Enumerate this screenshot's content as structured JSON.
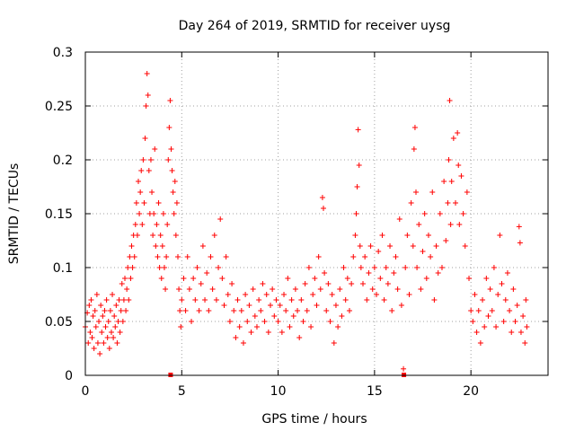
{
  "chart_data": {
    "type": "scatter",
    "title": "Day 264 of 2019, SRMTID for receiver uysg",
    "xlabel": "GPS time / hours",
    "ylabel": "SRMTID / TECUs",
    "xlim": [
      0,
      24
    ],
    "ylim": [
      0,
      0.3
    ],
    "x_ticks": [
      0,
      5,
      10,
      15,
      20
    ],
    "x_tick_labels": [
      "0",
      "5",
      "10",
      "15",
      "20"
    ],
    "y_ticks": [
      0,
      0.05,
      0.1,
      0.15,
      0.2,
      0.25,
      0.3
    ],
    "y_tick_labels": [
      "0",
      "0.05",
      "0.1",
      "0.15",
      "0.2",
      "0.25",
      "0.3"
    ],
    "grid": true,
    "marker": "+",
    "color": "#ff0000",
    "series": [
      {
        "name": "SRMTID",
        "points": [
          [
            0.0,
            0.045
          ],
          [
            0.1,
            0.058
          ],
          [
            0.15,
            0.03
          ],
          [
            0.2,
            0.065
          ],
          [
            0.25,
            0.04
          ],
          [
            0.3,
            0.07
          ],
          [
            0.35,
            0.035
          ],
          [
            0.4,
            0.055
          ],
          [
            0.45,
            0.025
          ],
          [
            0.5,
            0.06
          ],
          [
            0.55,
            0.045
          ],
          [
            0.6,
            0.075
          ],
          [
            0.65,
            0.03
          ],
          [
            0.7,
            0.05
          ],
          [
            0.75,
            0.02
          ],
          [
            0.8,
            0.065
          ],
          [
            0.85,
            0.04
          ],
          [
            0.9,
            0.055
          ],
          [
            0.95,
            0.03
          ],
          [
            1.0,
            0.06
          ],
          [
            1.05,
            0.045
          ],
          [
            1.1,
            0.07
          ],
          [
            1.15,
            0.035
          ],
          [
            1.2,
            0.05
          ],
          [
            1.25,
            0.025
          ],
          [
            1.3,
            0.06
          ],
          [
            1.35,
            0.04
          ],
          [
            1.4,
            0.075
          ],
          [
            1.45,
            0.035
          ],
          [
            1.5,
            0.055
          ],
          [
            1.55,
            0.045
          ],
          [
            1.6,
            0.065
          ],
          [
            1.65,
            0.03
          ],
          [
            1.7,
            0.05
          ],
          [
            1.75,
            0.07
          ],
          [
            1.8,
            0.04
          ],
          [
            1.85,
            0.06
          ],
          [
            1.9,
            0.085
          ],
          [
            1.95,
            0.05
          ],
          [
            2.0,
            0.07
          ],
          [
            2.05,
            0.09
          ],
          [
            2.1,
            0.06
          ],
          [
            2.15,
            0.08
          ],
          [
            2.2,
            0.1
          ],
          [
            2.25,
            0.07
          ],
          [
            2.3,
            0.11
          ],
          [
            2.35,
            0.09
          ],
          [
            2.4,
            0.12
          ],
          [
            2.45,
            0.1
          ],
          [
            2.5,
            0.13
          ],
          [
            2.55,
            0.11
          ],
          [
            2.6,
            0.14
          ],
          [
            2.65,
            0.16
          ],
          [
            2.7,
            0.13
          ],
          [
            2.75,
            0.18
          ],
          [
            2.8,
            0.15
          ],
          [
            2.85,
            0.17
          ],
          [
            2.9,
            0.19
          ],
          [
            2.95,
            0.14
          ],
          [
            3.0,
            0.2
          ],
          [
            3.05,
            0.16
          ],
          [
            3.1,
            0.22
          ],
          [
            3.15,
            0.25
          ],
          [
            3.2,
            0.28
          ],
          [
            3.25,
            0.26
          ],
          [
            3.3,
            0.19
          ],
          [
            3.35,
            0.15
          ],
          [
            3.4,
            0.2
          ],
          [
            3.45,
            0.17
          ],
          [
            3.5,
            0.13
          ],
          [
            3.55,
            0.15
          ],
          [
            3.6,
            0.21
          ],
          [
            3.65,
            0.12
          ],
          [
            3.7,
            0.14
          ],
          [
            3.75,
            0.11
          ],
          [
            3.8,
            0.16
          ],
          [
            3.85,
            0.1
          ],
          [
            3.9,
            0.13
          ],
          [
            3.95,
            0.09
          ],
          [
            4.0,
            0.12
          ],
          [
            4.05,
            0.15
          ],
          [
            4.1,
            0.1
          ],
          [
            4.15,
            0.08
          ],
          [
            4.2,
            0.11
          ],
          [
            4.25,
            0.14
          ],
          [
            4.3,
            0.2
          ],
          [
            4.35,
            0.23
          ],
          [
            4.4,
            0.255
          ],
          [
            4.45,
            0.21
          ],
          [
            4.5,
            0.19
          ],
          [
            4.55,
            0.17
          ],
          [
            4.6,
            0.15
          ],
          [
            4.65,
            0.18
          ],
          [
            4.7,
            0.13
          ],
          [
            4.75,
            0.16
          ],
          [
            4.8,
            0.11
          ],
          [
            4.85,
            0.08
          ],
          [
            4.9,
            0.06
          ],
          [
            4.95,
            0.045
          ],
          [
            5.0,
            0.07
          ],
          [
            5.1,
            0.09
          ],
          [
            5.2,
            0.06
          ],
          [
            5.3,
            0.11
          ],
          [
            5.4,
            0.08
          ],
          [
            5.5,
            0.05
          ],
          [
            5.6,
            0.09
          ],
          [
            5.7,
            0.07
          ],
          [
            5.8,
            0.1
          ],
          [
            5.9,
            0.06
          ],
          [
            6.0,
            0.085
          ],
          [
            6.1,
            0.12
          ],
          [
            6.2,
            0.07
          ],
          [
            6.3,
            0.095
          ],
          [
            6.4,
            0.06
          ],
          [
            6.5,
            0.11
          ],
          [
            6.6,
            0.08
          ],
          [
            6.7,
            0.13
          ],
          [
            6.8,
            0.07
          ],
          [
            6.9,
            0.1
          ],
          [
            7.0,
            0.145
          ],
          [
            7.1,
            0.09
          ],
          [
            7.2,
            0.065
          ],
          [
            7.3,
            0.11
          ],
          [
            7.4,
            0.075
          ],
          [
            7.5,
            0.05
          ],
          [
            7.6,
            0.085
          ],
          [
            7.7,
            0.06
          ],
          [
            7.8,
            0.035
          ],
          [
            7.9,
            0.07
          ],
          [
            8.0,
            0.045
          ],
          [
            8.1,
            0.06
          ],
          [
            8.2,
            0.03
          ],
          [
            8.3,
            0.075
          ],
          [
            8.4,
            0.05
          ],
          [
            8.5,
            0.065
          ],
          [
            8.6,
            0.04
          ],
          [
            8.7,
            0.08
          ],
          [
            8.8,
            0.055
          ],
          [
            8.9,
            0.045
          ],
          [
            9.0,
            0.07
          ],
          [
            9.1,
            0.06
          ],
          [
            9.2,
            0.085
          ],
          [
            9.3,
            0.05
          ],
          [
            9.4,
            0.075
          ],
          [
            9.5,
            0.04
          ],
          [
            9.6,
            0.065
          ],
          [
            9.7,
            0.08
          ],
          [
            9.8,
            0.055
          ],
          [
            9.9,
            0.07
          ],
          [
            10.0,
            0.05
          ],
          [
            10.1,
            0.065
          ],
          [
            10.2,
            0.04
          ],
          [
            10.3,
            0.075
          ],
          [
            10.4,
            0.06
          ],
          [
            10.5,
            0.09
          ],
          [
            10.6,
            0.045
          ],
          [
            10.7,
            0.07
          ],
          [
            10.8,
            0.055
          ],
          [
            10.9,
            0.08
          ],
          [
            11.0,
            0.06
          ],
          [
            11.1,
            0.035
          ],
          [
            11.2,
            0.07
          ],
          [
            11.3,
            0.05
          ],
          [
            11.4,
            0.085
          ],
          [
            11.5,
            0.06
          ],
          [
            11.6,
            0.1
          ],
          [
            11.7,
            0.045
          ],
          [
            11.8,
            0.075
          ],
          [
            11.9,
            0.09
          ],
          [
            12.0,
            0.065
          ],
          [
            12.1,
            0.11
          ],
          [
            12.2,
            0.08
          ],
          [
            12.3,
            0.165
          ],
          [
            12.35,
            0.155
          ],
          [
            12.4,
            0.095
          ],
          [
            12.5,
            0.06
          ],
          [
            12.6,
            0.085
          ],
          [
            12.7,
            0.05
          ],
          [
            12.8,
            0.075
          ],
          [
            12.9,
            0.03
          ],
          [
            13.0,
            0.065
          ],
          [
            13.1,
            0.045
          ],
          [
            13.2,
            0.08
          ],
          [
            13.3,
            0.055
          ],
          [
            13.4,
            0.1
          ],
          [
            13.5,
            0.07
          ],
          [
            13.6,
            0.09
          ],
          [
            13.7,
            0.06
          ],
          [
            13.8,
            0.085
          ],
          [
            13.9,
            0.11
          ],
          [
            14.0,
            0.13
          ],
          [
            14.05,
            0.15
          ],
          [
            14.1,
            0.175
          ],
          [
            14.15,
            0.228
          ],
          [
            14.2,
            0.195
          ],
          [
            14.25,
            0.12
          ],
          [
            14.3,
            0.1
          ],
          [
            14.4,
            0.085
          ],
          [
            14.5,
            0.11
          ],
          [
            14.6,
            0.07
          ],
          [
            14.7,
            0.095
          ],
          [
            14.8,
            0.12
          ],
          [
            14.9,
            0.08
          ],
          [
            15.0,
            0.1
          ],
          [
            15.1,
            0.075
          ],
          [
            15.2,
            0.115
          ],
          [
            15.3,
            0.09
          ],
          [
            15.4,
            0.13
          ],
          [
            15.5,
            0.07
          ],
          [
            15.6,
            0.1
          ],
          [
            15.7,
            0.085
          ],
          [
            15.8,
            0.12
          ],
          [
            15.9,
            0.06
          ],
          [
            16.0,
            0.095
          ],
          [
            16.1,
            0.11
          ],
          [
            16.2,
            0.08
          ],
          [
            16.3,
            0.145
          ],
          [
            16.4,
            0.065
          ],
          [
            16.5,
            0.006
          ],
          [
            16.6,
            0.1
          ],
          [
            16.7,
            0.13
          ],
          [
            16.8,
            0.075
          ],
          [
            16.9,
            0.16
          ],
          [
            17.0,
            0.12
          ],
          [
            17.05,
            0.21
          ],
          [
            17.1,
            0.23
          ],
          [
            17.15,
            0.17
          ],
          [
            17.2,
            0.1
          ],
          [
            17.3,
            0.14
          ],
          [
            17.4,
            0.08
          ],
          [
            17.5,
            0.115
          ],
          [
            17.6,
            0.15
          ],
          [
            17.7,
            0.09
          ],
          [
            17.8,
            0.13
          ],
          [
            17.9,
            0.11
          ],
          [
            18.0,
            0.17
          ],
          [
            18.1,
            0.07
          ],
          [
            18.2,
            0.12
          ],
          [
            18.3,
            0.095
          ],
          [
            18.4,
            0.15
          ],
          [
            18.5,
            0.1
          ],
          [
            18.6,
            0.18
          ],
          [
            18.7,
            0.125
          ],
          [
            18.8,
            0.16
          ],
          [
            18.85,
            0.2
          ],
          [
            18.9,
            0.255
          ],
          [
            18.95,
            0.14
          ],
          [
            19.0,
            0.18
          ],
          [
            19.1,
            0.22
          ],
          [
            19.2,
            0.16
          ],
          [
            19.3,
            0.225
          ],
          [
            19.35,
            0.195
          ],
          [
            19.4,
            0.14
          ],
          [
            19.5,
            0.185
          ],
          [
            19.6,
            0.15
          ],
          [
            19.7,
            0.12
          ],
          [
            19.8,
            0.17
          ],
          [
            19.9,
            0.09
          ],
          [
            20.0,
            0.06
          ],
          [
            20.1,
            0.05
          ],
          [
            20.2,
            0.075
          ],
          [
            20.3,
            0.04
          ],
          [
            20.4,
            0.06
          ],
          [
            20.5,
            0.03
          ],
          [
            20.6,
            0.07
          ],
          [
            20.7,
            0.045
          ],
          [
            20.8,
            0.09
          ],
          [
            20.9,
            0.055
          ],
          [
            21.0,
            0.08
          ],
          [
            21.1,
            0.06
          ],
          [
            21.2,
            0.1
          ],
          [
            21.3,
            0.045
          ],
          [
            21.4,
            0.075
          ],
          [
            21.5,
            0.13
          ],
          [
            21.6,
            0.085
          ],
          [
            21.7,
            0.05
          ],
          [
            21.8,
            0.07
          ],
          [
            21.9,
            0.095
          ],
          [
            22.0,
            0.06
          ],
          [
            22.1,
            0.04
          ],
          [
            22.2,
            0.08
          ],
          [
            22.3,
            0.05
          ],
          [
            22.4,
            0.065
          ],
          [
            22.5,
            0.138
          ],
          [
            22.55,
            0.123
          ],
          [
            22.6,
            0.04
          ],
          [
            22.7,
            0.055
          ],
          [
            22.8,
            0.03
          ],
          [
            22.85,
            0.07
          ],
          [
            22.9,
            0.045
          ]
        ]
      }
    ],
    "bottom_markers": [
      4.4,
      16.5
    ]
  }
}
